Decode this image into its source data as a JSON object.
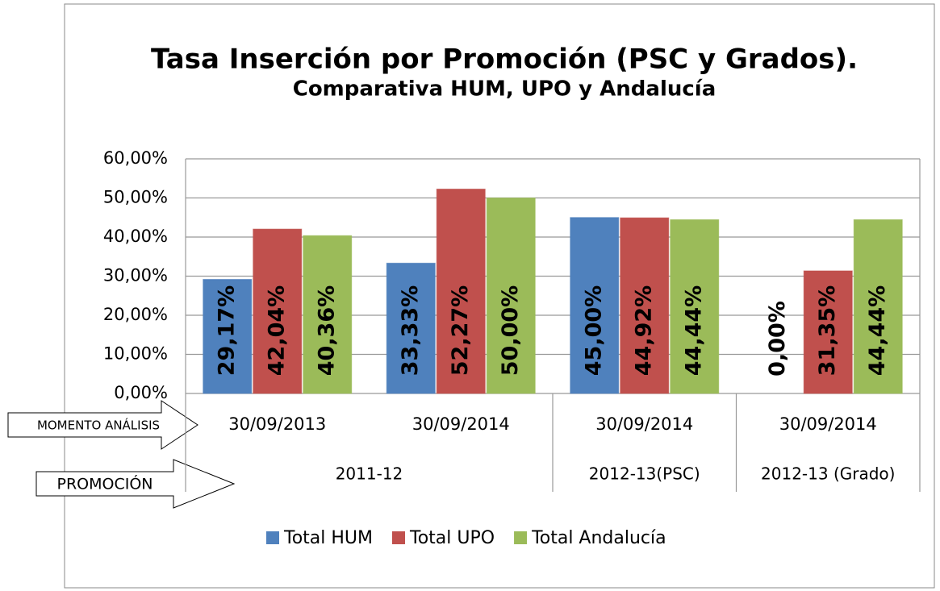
{
  "chart_data": {
    "type": "bar",
    "title": "Tasa Inserción por Promoción (PSC y Grados).",
    "subtitle": "Comparativa HUM, UPO y Andalucía",
    "categories": [
      "30/09/2013",
      "30/09/2014",
      "30/09/2014",
      "30/09/2014"
    ],
    "category_axis_label": "MOMENTO ANÁLISIS",
    "groups": [
      {
        "label": "2011-12",
        "span": 2
      },
      {
        "label": "2012-13(PSC)",
        "span": 1
      },
      {
        "label": "2012-13 (Grado)",
        "span": 1
      }
    ],
    "group_axis_label": "PROMOCIÓN",
    "series": [
      {
        "name": "Total HUM",
        "color": "#4f81bd",
        "values": [
          29.17,
          33.33,
          45.0,
          0.0
        ],
        "value_labels": [
          "29,17%",
          "33,33%",
          "45,00%",
          "0,00%"
        ]
      },
      {
        "name": "Total UPO",
        "color": "#c0504d",
        "values": [
          42.04,
          52.27,
          44.92,
          31.35
        ],
        "value_labels": [
          "42,04%",
          "52,27%",
          "44,92%",
          "31,35%"
        ]
      },
      {
        "name": "Total Andalucía",
        "color": "#9bbb59",
        "values": [
          40.36,
          50.0,
          44.44,
          44.44
        ],
        "value_labels": [
          "40,36%",
          "50,00%",
          "44,44%",
          "44,44%"
        ]
      }
    ],
    "ylim": [
      0,
      60
    ],
    "yticks": [
      {
        "value": 0,
        "label": "0,00%"
      },
      {
        "value": 10,
        "label": "10,00%"
      },
      {
        "value": 20,
        "label": "20,00%"
      },
      {
        "value": 30,
        "label": "30,00%"
      },
      {
        "value": 40,
        "label": "40,00%"
      },
      {
        "value": 50,
        "label": "50,00%"
      },
      {
        "value": 60,
        "label": "60,00%"
      }
    ],
    "grid": true,
    "legend": "bottom"
  }
}
